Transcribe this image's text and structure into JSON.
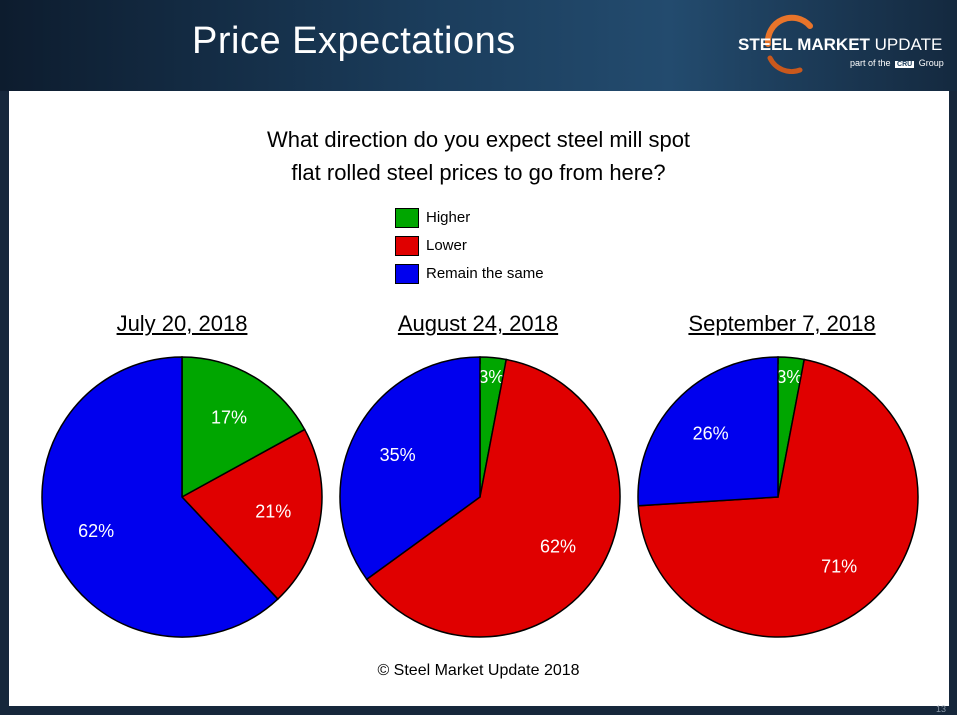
{
  "slide": {
    "title": "Price Expectations",
    "page_number": "13"
  },
  "logo": {
    "brand_bold": "STEEL MARKET",
    "brand_light": "UPDATE",
    "sub_prefix": "part of the",
    "sub_cru": "CRU",
    "sub_suffix": "Group"
  },
  "copyright": "© Steel Market Update 2018",
  "colors": {
    "higher": "#00a600",
    "lower": "#e00000",
    "same": "#0000ee"
  },
  "chart_data": {
    "type": "pie",
    "title": "What direction do you expect steel mill spot flat rolled steel prices to go from here?",
    "title_lines": [
      "What direction do you expect steel mill spot",
      "flat rolled steel prices to go from here?"
    ],
    "legend": [
      {
        "key": "higher",
        "label": "Higher"
      },
      {
        "key": "lower",
        "label": "Lower"
      },
      {
        "key": "same",
        "label": "Remain the same"
      }
    ],
    "legend_position": "top-center",
    "charts": [
      {
        "title": "July 20, 2018",
        "slices": [
          {
            "key": "higher",
            "value": 17,
            "label": "17%"
          },
          {
            "key": "lower",
            "value": 21,
            "label": "21%"
          },
          {
            "key": "same",
            "value": 62,
            "label": "62%"
          }
        ]
      },
      {
        "title": "August 24, 2018",
        "slices": [
          {
            "key": "higher",
            "value": 3,
            "label": "3%"
          },
          {
            "key": "lower",
            "value": 62,
            "label": "62%"
          },
          {
            "key": "same",
            "value": 35,
            "label": "35%"
          }
        ]
      },
      {
        "title": "September 7, 2018",
        "slices": [
          {
            "key": "higher",
            "value": 3,
            "label": "3%"
          },
          {
            "key": "lower",
            "value": 71,
            "label": "71%"
          },
          {
            "key": "same",
            "value": 26,
            "label": "26%"
          }
        ]
      }
    ]
  }
}
